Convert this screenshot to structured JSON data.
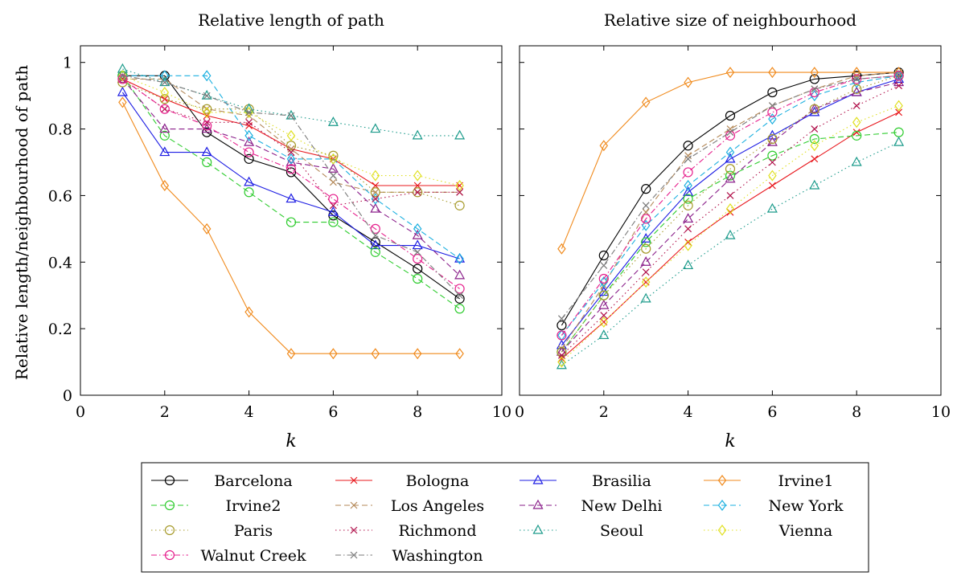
{
  "shared": {
    "ylabel": "Relative length/neighbourhood of path",
    "xlabel": "k"
  },
  "chart_data": [
    {
      "type": "line",
      "title": "Relative length of path",
      "xlabel": "k",
      "ylabel": "Relative length/neighbourhood of path",
      "xlim": [
        0,
        10
      ],
      "ylim": [
        0,
        1.05
      ],
      "xticks": [
        "0",
        "2",
        "4",
        "6",
        "8",
        "10"
      ],
      "yticks": [
        "0",
        "0.2",
        "0.4",
        "0.6",
        "0.8",
        "1"
      ],
      "x": [
        1,
        2,
        3,
        4,
        5,
        6,
        7,
        8,
        9
      ],
      "series": [
        {
          "name": "Barcelona",
          "values": [
            0.96,
            0.96,
            0.79,
            0.71,
            0.67,
            0.54,
            0.46,
            0.38,
            0.29
          ]
        },
        {
          "name": "Bologna",
          "values": [
            0.95,
            0.89,
            0.84,
            0.81,
            0.74,
            0.71,
            0.63,
            0.63,
            0.63
          ]
        },
        {
          "name": "Brasilia",
          "values": [
            0.91,
            0.73,
            0.73,
            0.64,
            0.59,
            0.55,
            0.45,
            0.45,
            0.41
          ]
        },
        {
          "name": "Irvine1",
          "values": [
            0.88,
            0.63,
            0.5,
            0.25,
            0.125,
            0.125,
            0.125,
            0.125,
            0.125
          ]
        },
        {
          "name": "Irvine2",
          "values": [
            0.96,
            0.78,
            0.7,
            0.61,
            0.52,
            0.52,
            0.43,
            0.35,
            0.26
          ]
        },
        {
          "name": "Los Angeles",
          "values": [
            0.95,
            0.95,
            0.86,
            0.84,
            0.74,
            0.64,
            0.61,
            0.61,
            0.61
          ]
        },
        {
          "name": "New Delhi",
          "values": [
            0.95,
            0.8,
            0.8,
            0.76,
            0.7,
            0.68,
            0.56,
            0.48,
            0.36
          ]
        },
        {
          "name": "New York",
          "values": [
            0.96,
            0.96,
            0.96,
            0.78,
            0.71,
            0.71,
            0.59,
            0.5,
            0.41
          ]
        },
        {
          "name": "Paris",
          "values": [
            0.94,
            0.89,
            0.86,
            0.86,
            0.75,
            0.72,
            0.61,
            0.61,
            0.57
          ]
        },
        {
          "name": "Richmond",
          "values": [
            0.95,
            0.86,
            0.82,
            0.82,
            0.73,
            0.57,
            0.59,
            0.61,
            0.61
          ]
        },
        {
          "name": "Seoul",
          "values": [
            0.98,
            0.94,
            0.9,
            0.86,
            0.84,
            0.82,
            0.8,
            0.78,
            0.78
          ]
        },
        {
          "name": "Vienna",
          "values": [
            0.96,
            0.91,
            0.85,
            0.85,
            0.78,
            0.71,
            0.66,
            0.66,
            0.63
          ]
        },
        {
          "name": "Walnut Creek",
          "values": [
            0.95,
            0.86,
            0.81,
            0.73,
            0.68,
            0.59,
            0.5,
            0.41,
            0.32
          ]
        },
        {
          "name": "Washington",
          "values": [
            0.96,
            0.94,
            0.9,
            0.85,
            0.84,
            0.66,
            0.48,
            0.43,
            0.3
          ]
        }
      ]
    },
    {
      "type": "line",
      "title": "Relative size of neighbourhood",
      "xlabel": "k",
      "xlim": [
        0,
        10
      ],
      "ylim": [
        0,
        1.05
      ],
      "xticks": [
        "0",
        "2",
        "4",
        "6",
        "8",
        "10"
      ],
      "yticks": [
        "0",
        "0.2",
        "0.4",
        "0.6",
        "0.8",
        "1"
      ],
      "x": [
        1,
        2,
        3,
        4,
        5,
        6,
        7,
        8,
        9
      ],
      "series": [
        {
          "name": "Barcelona",
          "values": [
            0.21,
            0.42,
            0.62,
            0.75,
            0.84,
            0.91,
            0.95,
            0.96,
            0.97
          ]
        },
        {
          "name": "Bologna",
          "values": [
            0.11,
            0.22,
            0.34,
            0.46,
            0.55,
            0.63,
            0.71,
            0.79,
            0.85
          ]
        },
        {
          "name": "Brasilia",
          "values": [
            0.15,
            0.31,
            0.47,
            0.61,
            0.71,
            0.78,
            0.85,
            0.91,
            0.95
          ]
        },
        {
          "name": "Irvine1",
          "values": [
            0.44,
            0.75,
            0.88,
            0.94,
            0.97,
            0.97,
            0.97,
            0.97,
            0.97
          ]
        },
        {
          "name": "Irvine2",
          "values": [
            0.13,
            0.3,
            0.46,
            0.59,
            0.66,
            0.72,
            0.77,
            0.78,
            0.79
          ]
        },
        {
          "name": "Los Angeles",
          "values": [
            0.14,
            0.33,
            0.55,
            0.72,
            0.8,
            0.87,
            0.92,
            0.96,
            0.97
          ]
        },
        {
          "name": "New Delhi",
          "values": [
            0.13,
            0.27,
            0.4,
            0.53,
            0.65,
            0.76,
            0.86,
            0.91,
            0.94
          ]
        },
        {
          "name": "New York",
          "values": [
            0.18,
            0.34,
            0.51,
            0.63,
            0.73,
            0.83,
            0.9,
            0.94,
            0.96
          ]
        },
        {
          "name": "Paris",
          "values": [
            0.13,
            0.3,
            0.44,
            0.57,
            0.68,
            0.77,
            0.86,
            0.92,
            0.96
          ]
        },
        {
          "name": "Richmond",
          "values": [
            0.12,
            0.24,
            0.37,
            0.5,
            0.6,
            0.7,
            0.8,
            0.87,
            0.93
          ]
        },
        {
          "name": "Seoul",
          "values": [
            0.09,
            0.18,
            0.29,
            0.39,
            0.48,
            0.56,
            0.63,
            0.7,
            0.76
          ]
        },
        {
          "name": "Vienna",
          "values": [
            0.1,
            0.22,
            0.34,
            0.45,
            0.56,
            0.66,
            0.75,
            0.82,
            0.87
          ]
        },
        {
          "name": "Walnut Creek",
          "values": [
            0.18,
            0.35,
            0.53,
            0.67,
            0.78,
            0.85,
            0.91,
            0.95,
            0.96
          ]
        },
        {
          "name": "Washington",
          "values": [
            0.23,
            0.39,
            0.57,
            0.71,
            0.79,
            0.87,
            0.92,
            0.95,
            0.96
          ]
        }
      ]
    }
  ],
  "legend": {
    "placement": "bottom-center",
    "columns": 4,
    "items": [
      {
        "name": "Barcelona",
        "color": "#000000",
        "marker": "circle",
        "dash": "solid"
      },
      {
        "name": "Bologna",
        "color": "#e8181e",
        "marker": "cross",
        "dash": "solid"
      },
      {
        "name": "Brasilia",
        "color": "#1c1ce3",
        "marker": "triangle",
        "dash": "solid"
      },
      {
        "name": "Irvine1",
        "color": "#f08a1c",
        "marker": "diamond",
        "dash": "solid"
      },
      {
        "name": "Irvine2",
        "color": "#2ecc2e",
        "marker": "circle",
        "dash": "dashed"
      },
      {
        "name": "Los Angeles",
        "color": "#b58a5a",
        "marker": "cross",
        "dash": "dashed"
      },
      {
        "name": "New Delhi",
        "color": "#8a1f8a",
        "marker": "triangle",
        "dash": "dashed"
      },
      {
        "name": "New York",
        "color": "#1cb0e0",
        "marker": "diamond",
        "dash": "dashed"
      },
      {
        "name": "Paris",
        "color": "#a69a2a",
        "marker": "circle",
        "dash": "dotted"
      },
      {
        "name": "Richmond",
        "color": "#b0104a",
        "marker": "cross",
        "dash": "dotted"
      },
      {
        "name": "Seoul",
        "color": "#1a9a8a",
        "marker": "triangle",
        "dash": "dotted"
      },
      {
        "name": "Vienna",
        "color": "#e0e020",
        "marker": "diamond",
        "dash": "dotted"
      },
      {
        "name": "Walnut Creek",
        "color": "#e61e8c",
        "marker": "circle",
        "dash": "dashdot"
      },
      {
        "name": "Washington",
        "color": "#7a7a7a",
        "marker": "cross",
        "dash": "dashdot"
      }
    ]
  }
}
